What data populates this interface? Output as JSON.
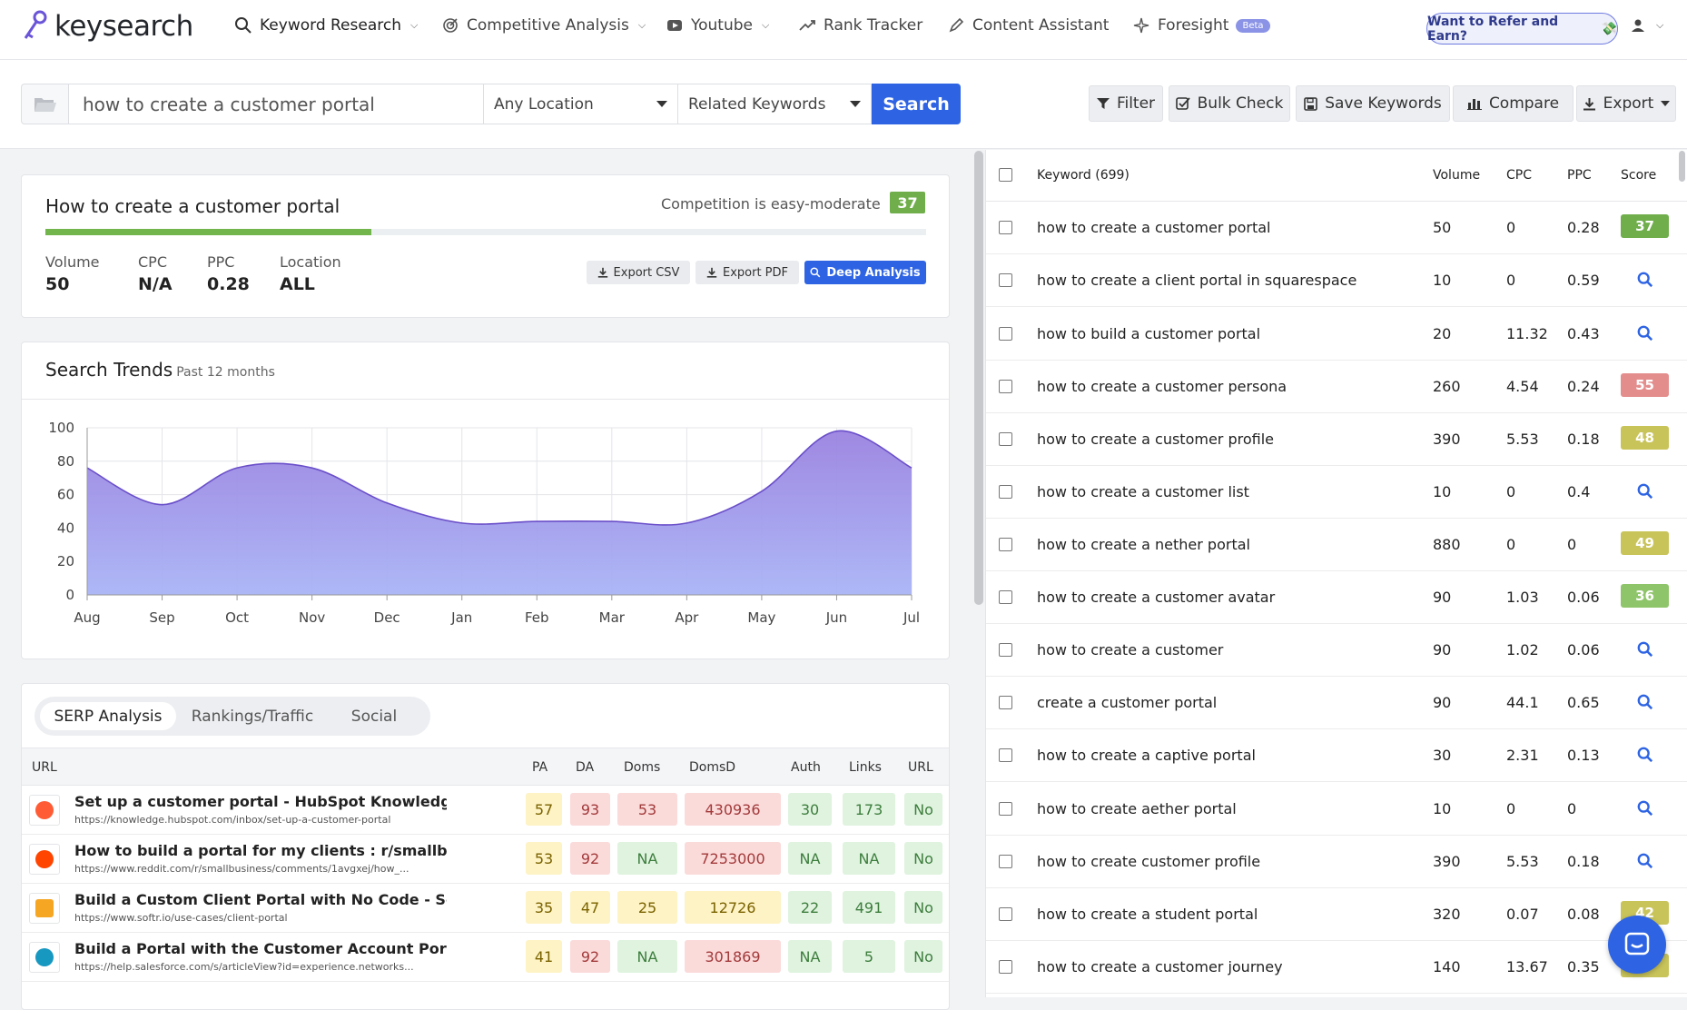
{
  "brand": {
    "name": "keysearch"
  },
  "nav": {
    "items": [
      {
        "label": "Keyword Research",
        "icon": "search-icon"
      },
      {
        "label": "Competitive Analysis",
        "icon": "target-icon"
      },
      {
        "label": "Youtube",
        "icon": "youtube-icon"
      },
      {
        "label": "Rank Tracker",
        "icon": "trend-icon"
      },
      {
        "label": "Content Assistant",
        "icon": "pen-icon"
      },
      {
        "label": "Foresight",
        "icon": "sparkle-icon",
        "badge": "Beta"
      }
    ],
    "refer_label": "Want to Refer and Earn?"
  },
  "search": {
    "query": "how to create a customer portal",
    "location": "Any Location",
    "mode": "Related Keywords",
    "button": "Search"
  },
  "toolbar": {
    "filter": "Filter",
    "bulk_check": "Bulk Check",
    "save_keywords": "Save Keywords",
    "compare": "Compare",
    "export": "Export"
  },
  "keyword_card": {
    "title": "How to create a customer portal",
    "competition_text": "Competition is easy-moderate",
    "score": "37",
    "score_fraction": 0.37,
    "metrics": [
      {
        "label": "Volume",
        "value": "50"
      },
      {
        "label": "CPC",
        "value": "N/A"
      },
      {
        "label": "PPC",
        "value": "0.28"
      },
      {
        "label": "Location",
        "value": "ALL"
      }
    ],
    "export_csv": "Export CSV",
    "export_pdf": "Export PDF",
    "deep_analysis": "Deep Analysis"
  },
  "trends": {
    "title": "Search Trends",
    "subtitle": "Past 12 months"
  },
  "chart_data": {
    "type": "area",
    "title": "",
    "categories": [
      "Aug",
      "Sep",
      "Oct",
      "Nov",
      "Dec",
      "Jan",
      "Feb",
      "Mar",
      "Apr",
      "May",
      "Jun",
      "Jul"
    ],
    "values": [
      76,
      54,
      76,
      76,
      55,
      43,
      44,
      44,
      43,
      62,
      98,
      76
    ],
    "ylim": [
      0,
      100
    ],
    "yticks": [
      "0",
      "20",
      "40",
      "60",
      "80",
      "100"
    ],
    "grid": true,
    "color": "#8f86e3"
  },
  "serp": {
    "tabs": [
      "SERP Analysis",
      "Rankings/Traffic",
      "Social"
    ],
    "columns": [
      "URL",
      "PA",
      "DA",
      "Doms",
      "DomsD",
      "Auth",
      "Links",
      "URL"
    ],
    "rows": [
      {
        "title": "Set up a customer portal - HubSpot Knowledge Base",
        "url": "https://knowledge.hubspot.com/inbox/set-up-a-customer-portal",
        "favicon": "hubspot-icon",
        "pa": "57",
        "da": "93",
        "doms": "53",
        "domsd": "430936",
        "auth": "30",
        "links": "173",
        "urlflag": "No",
        "colors": [
          "yellow",
          "red",
          "red",
          "red",
          "green",
          "green",
          "green"
        ]
      },
      {
        "title": "How to build a portal for my clients : r/smallbusine...",
        "url": "https://www.reddit.com/r/smallbusiness/comments/1avgxej/how_...",
        "favicon": "reddit-icon",
        "pa": "53",
        "da": "92",
        "doms": "NA",
        "domsd": "7253000",
        "auth": "NA",
        "links": "NA",
        "urlflag": "No",
        "colors": [
          "yellow",
          "red",
          "green",
          "red",
          "green",
          "green",
          "green"
        ]
      },
      {
        "title": "Build a Custom Client Portal with No Code - Softr",
        "url": "https://www.softr.io/use-cases/client-portal",
        "favicon": "softr-icon",
        "pa": "35",
        "da": "47",
        "doms": "25",
        "domsd": "12726",
        "auth": "22",
        "links": "491",
        "urlflag": "No",
        "colors": [
          "yellow",
          "yellow",
          "yellow",
          "yellow",
          "green",
          "green",
          "green"
        ]
      },
      {
        "title": "Build a Portal with the Customer Account Portal Sol...",
        "url": "https://help.salesforce.com/s/articleView?id=experience.networks...",
        "favicon": "salesforce-icon",
        "pa": "41",
        "da": "92",
        "doms": "NA",
        "domsd": "301869",
        "auth": "NA",
        "links": "5",
        "urlflag": "No",
        "colors": [
          "yellow",
          "red",
          "green",
          "red",
          "green",
          "green",
          "green"
        ]
      }
    ]
  },
  "keywords": {
    "header": {
      "keyword": "Keyword (699)",
      "volume": "Volume",
      "cpc": "CPC",
      "ppc": "PPC",
      "score": "Score"
    },
    "rows": [
      {
        "keyword": "how to create a customer portal",
        "volume": "50",
        "cpc": "0",
        "ppc": "0.28",
        "score": "37",
        "color": "#6fae4b"
      },
      {
        "keyword": "how to create a client portal in squarespace",
        "volume": "10",
        "cpc": "0",
        "ppc": "0.59",
        "score": null,
        "color": null
      },
      {
        "keyword": "how to build a customer portal",
        "volume": "20",
        "cpc": "11.32",
        "ppc": "0.43",
        "score": null,
        "color": null
      },
      {
        "keyword": "how to create a customer persona",
        "volume": "260",
        "cpc": "4.54",
        "ppc": "0.24",
        "score": "55",
        "color": "#e48d8d"
      },
      {
        "keyword": "how to create a customer profile",
        "volume": "390",
        "cpc": "5.53",
        "ppc": "0.18",
        "score": "48",
        "color": "#c9c45a"
      },
      {
        "keyword": "how to create a customer list",
        "volume": "10",
        "cpc": "0",
        "ppc": "0.4",
        "score": null,
        "color": null
      },
      {
        "keyword": "how to create a nether portal",
        "volume": "880",
        "cpc": "0",
        "ppc": "0",
        "score": "49",
        "color": "#c9c45a"
      },
      {
        "keyword": "how to create a customer avatar",
        "volume": "90",
        "cpc": "1.03",
        "ppc": "0.06",
        "score": "36",
        "color": "#8fc56a"
      },
      {
        "keyword": "how to create a customer",
        "volume": "90",
        "cpc": "1.02",
        "ppc": "0.06",
        "score": null,
        "color": null
      },
      {
        "keyword": "create a customer portal",
        "volume": "90",
        "cpc": "44.1",
        "ppc": "0.65",
        "score": null,
        "color": null
      },
      {
        "keyword": "how to create a captive portal",
        "volume": "30",
        "cpc": "2.31",
        "ppc": "0.13",
        "score": null,
        "color": null
      },
      {
        "keyword": "how to create aether portal",
        "volume": "10",
        "cpc": "0",
        "ppc": "0",
        "score": null,
        "color": null
      },
      {
        "keyword": "how to create customer profile",
        "volume": "390",
        "cpc": "5.53",
        "ppc": "0.18",
        "score": null,
        "color": null
      },
      {
        "keyword": "how to create a student portal",
        "volume": "320",
        "cpc": "0.07",
        "ppc": "0.08",
        "score": "42",
        "color": "#c9c45a"
      },
      {
        "keyword": "how to create a customer journey",
        "volume": "140",
        "cpc": "13.67",
        "ppc": "0.35",
        "score": null,
        "color": "#c9c45a"
      }
    ]
  }
}
